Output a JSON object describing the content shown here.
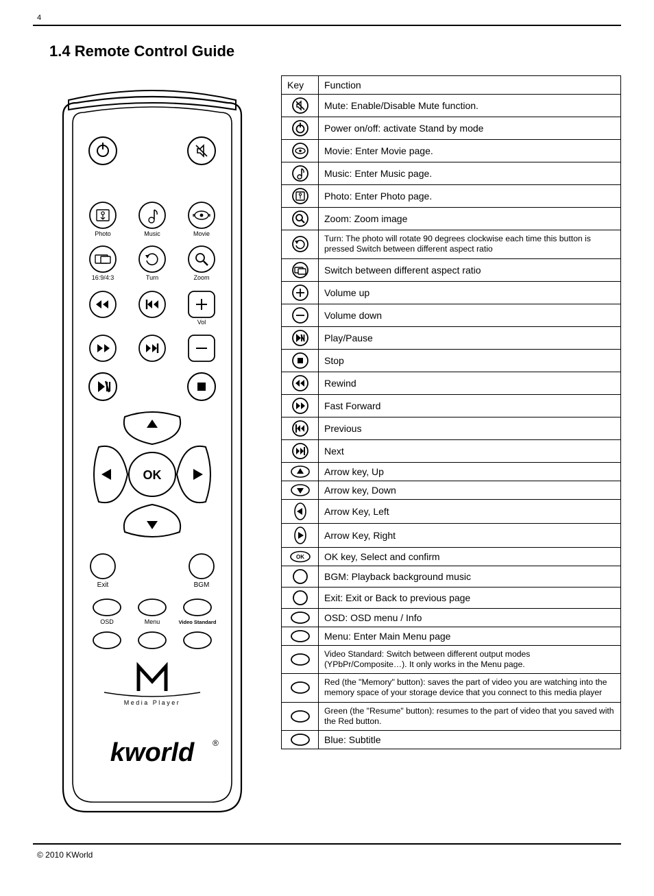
{
  "page_number": "4",
  "section_title": "1.4 Remote Control Guide",
  "copyright": "© 2010 KWorld",
  "remote": {
    "labels": {
      "photo": "Photo",
      "music": "Music",
      "movie": "Movie",
      "aspect": "16:9/4:3",
      "turn": "Turn",
      "zoom": "Zoom",
      "vol": "Vol",
      "ok": "OK",
      "exit": "Exit",
      "bgm": "BGM",
      "osd": "OSD",
      "menu": "Menu",
      "video_std": "Video Standard",
      "media_player": "Media Player",
      "brand": "kworld"
    }
  },
  "table": {
    "header": {
      "key": "Key",
      "func": "Function"
    },
    "rows": [
      {
        "icon": "mute",
        "text": "Mute: Enable/Disable Mute function."
      },
      {
        "icon": "power",
        "text": "Power on/off: activate Stand by mode"
      },
      {
        "icon": "movie",
        "text": "Movie: Enter Movie page."
      },
      {
        "icon": "music",
        "text": "Music: Enter Music page."
      },
      {
        "icon": "photo",
        "text": "Photo: Enter Photo page."
      },
      {
        "icon": "zoom",
        "text": "Zoom: Zoom image"
      },
      {
        "icon": "turn",
        "text": "Turn: The photo will rotate 90 degrees clockwise each time this button is pressed Switch between different aspect ratio",
        "small": true
      },
      {
        "icon": "aspect",
        "text": "Switch between different aspect ratio"
      },
      {
        "icon": "volup",
        "text": "Volume up"
      },
      {
        "icon": "voldown",
        "text": "Volume down"
      },
      {
        "icon": "playpause",
        "text": "Play/Pause"
      },
      {
        "icon": "stop",
        "text": "Stop"
      },
      {
        "icon": "rewind",
        "text": "Rewind"
      },
      {
        "icon": "ffwd",
        "text": "Fast Forward"
      },
      {
        "icon": "prev",
        "text": "Previous"
      },
      {
        "icon": "next",
        "text": "Next"
      },
      {
        "icon": "arrow_up",
        "text": "Arrow key, Up"
      },
      {
        "icon": "arrow_down",
        "text": "Arrow key, Down"
      },
      {
        "icon": "arrow_left",
        "text": "Arrow Key, Left"
      },
      {
        "icon": "arrow_right",
        "text": "Arrow Key, Right"
      },
      {
        "icon": "ok",
        "text": "OK key, Select and confirm"
      },
      {
        "icon": "circle",
        "text": "BGM: Playback background music"
      },
      {
        "icon": "circle",
        "text": "Exit: Exit or Back to previous page"
      },
      {
        "icon": "oval",
        "text": "OSD: OSD menu / Info"
      },
      {
        "icon": "oval",
        "text": "Menu: Enter Main Menu page"
      },
      {
        "icon": "oval",
        "text": "Video Standard: Switch between different output modes (YPbPr/Composite…). It only works in the Menu page.",
        "small": true
      },
      {
        "icon": "oval",
        "text": "Red (the \"Memory\" button): saves the part of video you are watching into the memory space of your storage device that you connect to this media player",
        "small": true
      },
      {
        "icon": "oval",
        "text": "Green (the \"Resume\" button): resumes to the part of video that you saved with the Red button.",
        "small": true
      },
      {
        "icon": "oval",
        "text": "Blue: Subtitle"
      }
    ]
  },
  "style": {
    "stroke": "#000000",
    "stroke_width_outer": 2.2,
    "stroke_width_btn": 1.6,
    "font_main": "Arial"
  }
}
